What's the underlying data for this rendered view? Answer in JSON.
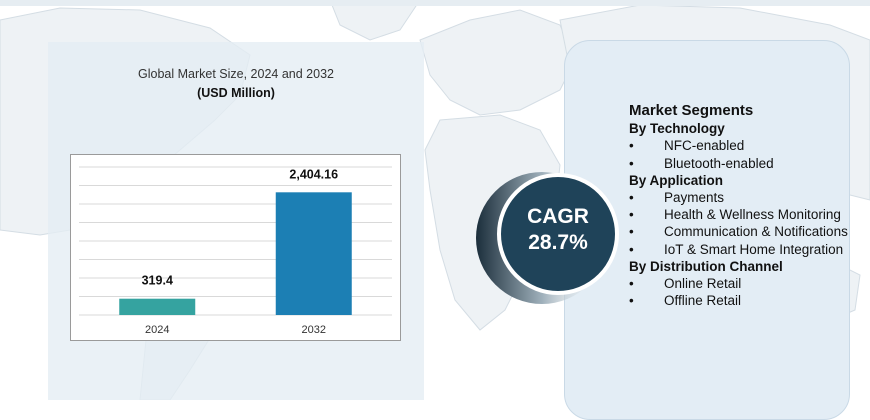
{
  "chart_data": {
    "type": "bar",
    "title": "Global Market Size, 2024 and 2032",
    "subtitle": "(USD Million)",
    "categories": [
      "2024",
      "2032"
    ],
    "values": [
      319.4,
      2404.16
    ],
    "value_labels": [
      "319.4",
      "2,404.16"
    ],
    "bar_colors": [
      "#35a3a0",
      "#1c7fb4"
    ],
    "ylim": [
      0,
      2900
    ],
    "grid": true,
    "xlabel": "",
    "ylabel": ""
  },
  "cagr": {
    "label": "CAGR",
    "value": "28.7%",
    "color": "#1f4359"
  },
  "segments": {
    "heading": "Market Segments",
    "groups": [
      {
        "title": "By Technology",
        "items": [
          "NFC-enabled",
          "Bluetooth-enabled"
        ]
      },
      {
        "title": "By Application",
        "items": [
          "Payments",
          "Health & Wellness Monitoring",
          "Communication & Notifications",
          "IoT & Smart Home Integration"
        ]
      },
      {
        "title": "By Distribution Channel",
        "items": [
          "Online Retail",
          "Offline Retail"
        ]
      }
    ]
  }
}
